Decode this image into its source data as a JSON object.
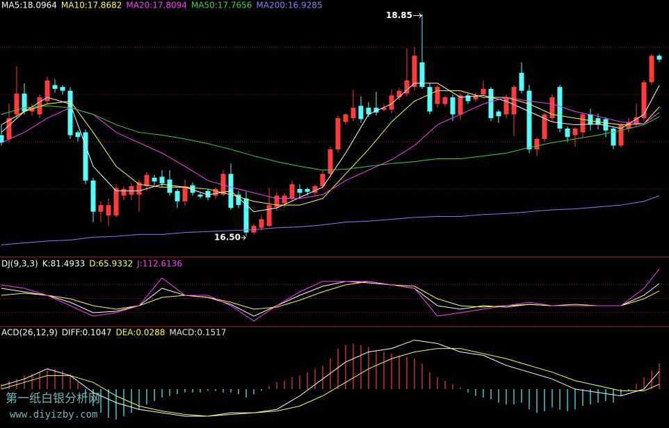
{
  "chart_data": [
    {
      "type": "candlestick",
      "up_color": "#ff3c3c",
      "down_color": "#54fcfc",
      "grid": true,
      "grid_color": "#8b1a1a",
      "ylim": [
        16.28,
        19.0
      ],
      "yticks": [
        17.0,
        17.5,
        18.0,
        18.5
      ],
      "ohlc": [
        [
          17.57,
          17.68,
          17.46,
          17.49
        ],
        [
          17.53,
          17.9,
          17.49,
          17.75
        ],
        [
          17.79,
          18.3,
          17.75,
          18.01
        ],
        [
          18.01,
          18.12,
          17.79,
          17.82
        ],
        [
          17.82,
          17.9,
          17.78,
          17.86
        ],
        [
          17.79,
          18.0,
          17.75,
          17.97
        ],
        [
          17.93,
          18.19,
          17.9,
          18.15
        ],
        [
          18.1,
          18.16,
          18.02,
          18.06
        ],
        [
          18.08,
          18.1,
          18.0,
          18.04
        ],
        [
          18.04,
          18.08,
          17.53,
          17.57
        ],
        [
          17.6,
          17.62,
          17.5,
          17.55
        ],
        [
          17.6,
          17.63,
          17.05,
          17.09
        ],
        [
          17.09,
          17.12,
          16.65,
          16.76
        ],
        [
          16.76,
          16.87,
          16.65,
          16.83
        ],
        [
          16.72,
          16.9,
          16.61,
          16.83
        ],
        [
          16.72,
          17.05,
          16.7,
          17.01
        ],
        [
          16.93,
          17.03,
          16.88,
          17.0
        ],
        [
          16.94,
          17.06,
          16.88,
          17.03
        ],
        [
          16.94,
          17.1,
          16.76,
          17.07
        ],
        [
          17.03,
          17.18,
          16.98,
          17.15
        ],
        [
          17.12,
          17.15,
          17.04,
          17.08
        ],
        [
          17.13,
          17.2,
          17.02,
          17.06
        ],
        [
          17.1,
          17.2,
          16.93,
          16.96
        ],
        [
          16.98,
          17.0,
          16.8,
          16.87
        ],
        [
          16.87,
          17.1,
          16.82,
          17.03
        ],
        [
          17.04,
          17.07,
          16.93,
          16.96
        ],
        [
          16.94,
          16.96,
          16.9,
          16.92
        ],
        [
          16.98,
          17.0,
          16.88,
          16.91
        ],
        [
          16.93,
          17.02,
          16.9,
          17.0
        ],
        [
          16.94,
          17.2,
          16.92,
          17.16
        ],
        [
          17.16,
          17.27,
          16.78,
          16.8
        ],
        [
          16.94,
          16.98,
          16.8,
          16.83
        ],
        [
          16.9,
          16.97,
          16.5,
          16.54
        ],
        [
          16.54,
          16.63,
          16.52,
          16.61
        ],
        [
          16.59,
          16.72,
          16.56,
          16.68
        ],
        [
          16.61,
          17.01,
          16.6,
          16.83
        ],
        [
          16.81,
          16.97,
          16.77,
          16.93
        ],
        [
          16.85,
          16.96,
          16.8,
          16.93
        ],
        [
          16.9,
          17.09,
          16.88,
          17.05
        ],
        [
          17.0,
          17.05,
          16.9,
          16.96
        ],
        [
          17.0,
          17.02,
          16.93,
          16.97
        ],
        [
          16.96,
          17.05,
          16.93,
          17.03
        ],
        [
          17.03,
          17.2,
          17.0,
          17.16
        ],
        [
          17.16,
          17.45,
          17.12,
          17.42
        ],
        [
          17.42,
          17.78,
          17.38,
          17.75
        ],
        [
          17.71,
          17.8,
          17.68,
          17.79
        ],
        [
          17.75,
          18.05,
          17.72,
          17.86
        ],
        [
          17.88,
          17.98,
          17.7,
          17.74
        ],
        [
          17.86,
          17.92,
          17.76,
          17.79
        ],
        [
          17.86,
          18.03,
          17.78,
          17.81
        ],
        [
          17.84,
          17.9,
          17.82,
          17.86
        ],
        [
          17.84,
          18.05,
          17.8,
          17.99
        ],
        [
          17.97,
          18.07,
          17.94,
          18.04
        ],
        [
          18.01,
          18.49,
          17.98,
          18.15
        ],
        [
          18.08,
          18.5,
          18.04,
          18.41
        ],
        [
          18.34,
          18.85,
          18.06,
          18.08
        ],
        [
          18.08,
          18.12,
          17.79,
          17.82
        ],
        [
          17.9,
          18.1,
          17.86,
          18.08
        ],
        [
          17.9,
          17.99,
          17.87,
          17.97
        ],
        [
          17.97,
          18.0,
          17.72,
          17.79
        ],
        [
          17.79,
          18.01,
          17.73,
          17.99
        ],
        [
          17.99,
          18.01,
          17.9,
          17.93
        ],
        [
          17.95,
          18.02,
          17.92,
          17.99
        ],
        [
          18.0,
          18.15,
          17.98,
          18.06
        ],
        [
          18.06,
          18.08,
          17.72,
          17.75
        ],
        [
          17.82,
          17.84,
          17.7,
          17.77
        ],
        [
          17.79,
          18.0,
          17.75,
          17.97
        ],
        [
          17.79,
          18.1,
          17.56,
          18.08
        ],
        [
          18.23,
          18.34,
          18.01,
          18.04
        ],
        [
          18.04,
          18.1,
          17.38,
          17.42
        ],
        [
          17.42,
          17.55,
          17.35,
          17.53
        ],
        [
          17.53,
          17.81,
          17.5,
          17.79
        ],
        [
          17.75,
          18.0,
          17.72,
          17.97
        ],
        [
          18.08,
          18.1,
          17.6,
          17.64
        ],
        [
          17.64,
          17.66,
          17.5,
          17.55
        ],
        [
          17.57,
          17.66,
          17.45,
          17.64
        ],
        [
          17.6,
          17.81,
          17.55,
          17.79
        ],
        [
          17.79,
          17.85,
          17.62,
          17.68
        ],
        [
          17.75,
          17.8,
          17.63,
          17.68
        ],
        [
          17.74,
          17.76,
          17.55,
          17.62
        ],
        [
          17.64,
          17.66,
          17.42,
          17.46
        ],
        [
          17.46,
          17.7,
          17.44,
          17.68
        ],
        [
          17.64,
          17.75,
          17.6,
          17.71
        ],
        [
          17.69,
          17.9,
          17.66,
          17.76
        ],
        [
          17.75,
          18.15,
          17.72,
          18.13
        ],
        [
          18.13,
          18.43,
          18.1,
          18.41
        ],
        [
          18.41,
          18.43,
          18.34,
          18.37
        ]
      ],
      "annotations": [
        {
          "value": 18.85,
          "label": "18.85"
        },
        {
          "value": 16.5,
          "label": "16.50"
        }
      ],
      "line_x": [
        0,
        3,
        6,
        9,
        12,
        15,
        18,
        21,
        24,
        27,
        30,
        33,
        36,
        39,
        42,
        45,
        48,
        51,
        54,
        57,
        60,
        63,
        66,
        69,
        72,
        75,
        78,
        81,
        84,
        86
      ],
      "series": [
        {
          "label": "MA5:18.0964",
          "color": "#ffffff",
          "values": [
            17.6,
            17.82,
            17.97,
            17.9,
            17.24,
            16.98,
            16.98,
            17.05,
            17.02,
            16.94,
            16.98,
            16.76,
            16.8,
            16.91,
            17.02,
            17.38,
            17.79,
            17.9,
            18.12,
            18.12,
            17.97,
            17.99,
            17.93,
            17.82,
            17.71,
            17.68,
            17.69,
            17.64,
            17.79,
            18.0964
          ]
        },
        {
          "label": "MA10:17.8682",
          "color": "#ffff3c",
          "values": [
            17.68,
            17.82,
            17.9,
            17.93,
            17.6,
            17.24,
            17.05,
            17.02,
            17.02,
            17.0,
            16.94,
            16.87,
            16.83,
            16.83,
            16.9,
            17.16,
            17.42,
            17.71,
            17.93,
            18.04,
            18.04,
            17.97,
            17.97,
            17.9,
            17.79,
            17.75,
            17.71,
            17.68,
            17.69,
            17.8682
          ]
        },
        {
          "label": "MA20:17.8094",
          "color": "#ff3cff",
          "values": [
            17.49,
            17.6,
            17.75,
            17.86,
            17.79,
            17.6,
            17.49,
            17.38,
            17.24,
            17.09,
            17.02,
            16.96,
            16.9,
            16.9,
            16.94,
            17.09,
            17.2,
            17.31,
            17.46,
            17.68,
            17.79,
            17.9,
            17.97,
            17.93,
            17.9,
            17.82,
            17.77,
            17.71,
            17.69,
            17.8094
          ]
        },
        {
          "label": "MA50:17.7656",
          "color": "#3cd23c",
          "values": [
            17.79,
            17.86,
            17.88,
            17.86,
            17.79,
            17.68,
            17.6,
            17.57,
            17.53,
            17.48,
            17.42,
            17.35,
            17.29,
            17.24,
            17.2,
            17.21,
            17.24,
            17.27,
            17.29,
            17.32,
            17.32,
            17.35,
            17.38,
            17.44,
            17.49,
            17.53,
            17.57,
            17.62,
            17.68,
            17.7656
          ]
        },
        {
          "label": "MA200:16.9285",
          "color": "#8080ff",
          "values": [
            16.41,
            16.43,
            16.45,
            16.46,
            16.49,
            16.5,
            16.52,
            16.52,
            16.54,
            16.55,
            16.56,
            16.57,
            16.59,
            16.6,
            16.62,
            16.65,
            16.66,
            16.68,
            16.7,
            16.71,
            16.71,
            16.73,
            16.74,
            16.76,
            16.78,
            16.79,
            16.81,
            16.83,
            16.87,
            16.9285
          ]
        }
      ]
    },
    {
      "type": "line",
      "title": "DJ(9,3,3)",
      "grid": true,
      "grid_color": "#8b1a1a",
      "ylim": [
        -10,
        135
      ],
      "yticks": [
        20,
        50,
        80
      ],
      "line_x": [
        0,
        3,
        6,
        9,
        12,
        15,
        18,
        21,
        24,
        27,
        30,
        33,
        36,
        39,
        42,
        45,
        48,
        51,
        54,
        57,
        60,
        63,
        66,
        69,
        72,
        75,
        78,
        81,
        84,
        86
      ],
      "series": [
        {
          "label": "K:81.4933",
          "color": "#ffffff",
          "values": [
            71.4,
            64.0,
            56.6,
            41.8,
            19.6,
            22.5,
            34.4,
            71.4,
            56.6,
            52.1,
            37.3,
            12.2,
            34.4,
            56.6,
            75.8,
            86.2,
            83.2,
            78.8,
            71.4,
            34.4,
            27.0,
            34.4,
            31.4,
            37.3,
            34.4,
            34.4,
            34.4,
            34.4,
            56.6,
            81.4933
          ]
        },
        {
          "label": "D:65.9332",
          "color": "#ffff3c",
          "values": [
            56.6,
            61.0,
            56.6,
            49.2,
            34.4,
            27.0,
            34.4,
            52.1,
            56.6,
            52.1,
            41.8,
            27.0,
            31.4,
            46.2,
            64.0,
            78.8,
            86.2,
            78.8,
            75.8,
            49.2,
            34.4,
            31.4,
            34.4,
            37.3,
            34.4,
            37.3,
            34.4,
            34.4,
            49.2,
            65.9332
          ]
        },
        {
          "label": "J:112.6136",
          "color": "#ff3cff",
          "values": [
            78.8,
            71.4,
            56.6,
            34.4,
            12.2,
            19.6,
            34.4,
            93.6,
            56.6,
            56.6,
            34.4,
            1.8,
            34.4,
            64.0,
            86.2,
            86.2,
            86.2,
            78.8,
            71.4,
            12.2,
            19.6,
            27.0,
            34.4,
            41.8,
            34.4,
            34.4,
            34.4,
            34.4,
            71.4,
            112.6136
          ]
        }
      ]
    },
    {
      "type": "macd",
      "title": "ACD(26,12,9)",
      "ylim": [
        -0.23,
        0.37
      ],
      "line_x": [
        0,
        3,
        6,
        9,
        12,
        15,
        18,
        21,
        24,
        27,
        30,
        33,
        36,
        39,
        42,
        45,
        48,
        51,
        54,
        57,
        60,
        63,
        66,
        69,
        72,
        75,
        78,
        81,
        84,
        86
      ],
      "series": [
        {
          "label": "DIFF:0.1047",
          "color": "#ffffff",
          "values": [
            0.02,
            0.06,
            0.12,
            0.08,
            -0.02,
            -0.08,
            -0.12,
            -0.14,
            -0.16,
            -0.16,
            -0.14,
            -0.14,
            -0.12,
            -0.04,
            0.06,
            0.16,
            0.22,
            0.24,
            0.29,
            0.27,
            0.22,
            0.2,
            0.14,
            0.1,
            0.06,
            0,
            -0.02,
            -0.04,
            0,
            0.1047
          ]
        },
        {
          "label": "DEA:0.0288",
          "color": "#ffff3c",
          "values": [
            0,
            0.04,
            0.08,
            0.08,
            0.04,
            -0.04,
            -0.1,
            -0.13,
            -0.15,
            -0.16,
            -0.15,
            -0.14,
            -0.13,
            -0.1,
            -0.04,
            0.04,
            0.12,
            0.18,
            0.22,
            0.24,
            0.24,
            0.21,
            0.18,
            0.14,
            0.1,
            0.05,
            0.02,
            -0.01,
            -0.01,
            0.0288
          ]
        }
      ],
      "histogram": {
        "label": "MACD:0.1517",
        "color": "#e6e6e6",
        "up_color": "#ff3c3c",
        "down_color": "#54fcfc",
        "values": [
          0.03,
          0.05,
          0.06,
          0.08,
          0.09,
          0.1,
          0.11,
          0.12,
          0.11,
          0.09,
          0.04,
          -0.05,
          -0.1,
          -0.14,
          -0.17,
          -0.18,
          -0.16,
          -0.14,
          -0.12,
          -0.09,
          -0.07,
          -0.05,
          -0.04,
          -0.03,
          -0.02,
          -0.02,
          -0.02,
          -0.01,
          -0.01,
          -0.02,
          -0.02,
          -0.03,
          -0.05,
          -0.03,
          -0.01,
          0.02,
          0.04,
          0.05,
          0.07,
          0.08,
          0.1,
          0.12,
          0.14,
          0.18,
          0.24,
          0.26,
          0.27,
          0.26,
          0.25,
          0.23,
          0.22,
          0.21,
          0.2,
          0.19,
          0.18,
          0.15,
          0.1,
          0.07,
          0.05,
          0.03,
          0.01,
          -0.02,
          -0.04,
          -0.05,
          -0.06,
          -0.08,
          -0.09,
          -0.09,
          -0.08,
          -0.12,
          -0.14,
          -0.13,
          -0.11,
          -0.12,
          -0.13,
          -0.12,
          -0.1,
          -0.09,
          -0.08,
          -0.07,
          -0.08,
          -0.04,
          -0.01,
          0.03,
          0.07,
          0.11,
          0.1517
        ]
      }
    }
  ],
  "watermark": {
    "name": "第一纸白银分析网",
    "url": "www.diyizby.com"
  }
}
